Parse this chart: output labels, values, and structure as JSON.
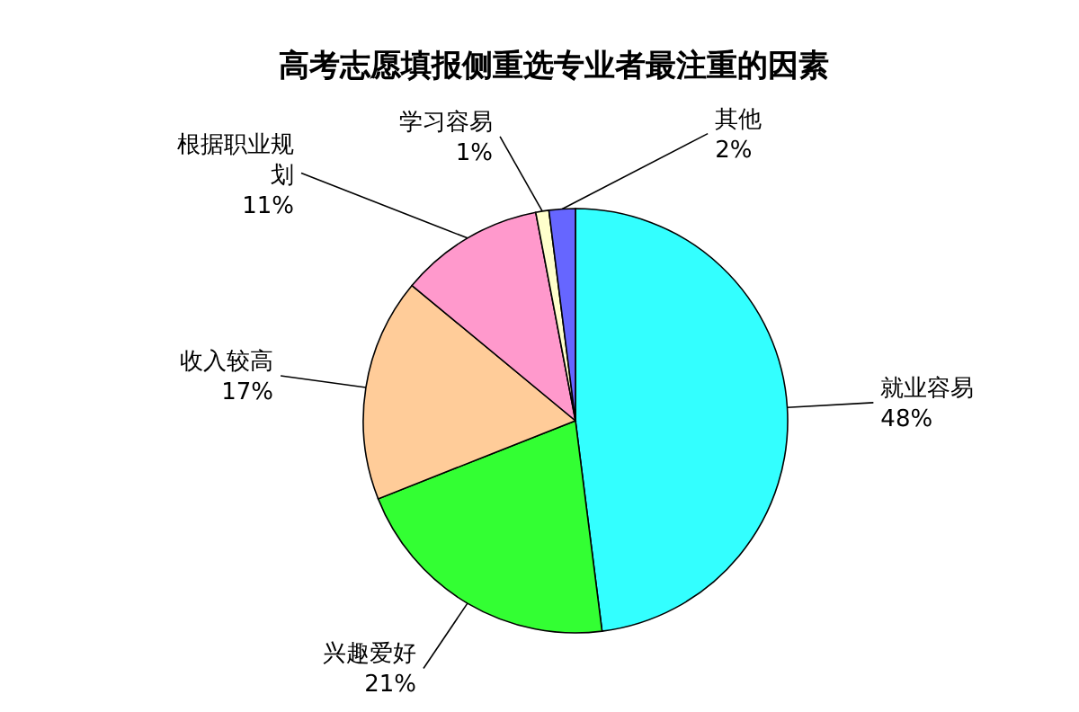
{
  "chart_data": {
    "type": "pie",
    "title": "高考志愿填报侧重选专业者最注重的因素",
    "categories": [
      "就业容易",
      "兴趣爱好",
      "收入较高",
      "根据职业规划",
      "学习容易",
      "其他"
    ],
    "values": [
      48,
      21,
      17,
      11,
      1,
      2
    ],
    "value_labels": [
      "48%",
      "21%",
      "17%",
      "11%",
      "1%",
      "2%"
    ],
    "colors": [
      "#33ffff",
      "#33ff33",
      "#ffcc99",
      "#ff99cc",
      "#ffffcc",
      "#6666ff"
    ]
  }
}
